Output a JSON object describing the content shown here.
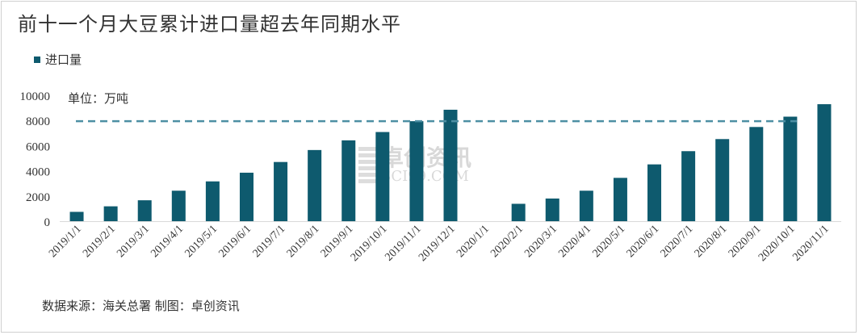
{
  "title": "前十一个月大豆累计进口量超去年同期水平",
  "unit_label": "单位：万吨",
  "source_label": "数据来源：海关总署    制图：卓创资讯",
  "watermark": {
    "cn": "卓创资讯",
    "en": "SCI99.COM"
  },
  "colors": {
    "bar": "#0e5a6e",
    "reference_line": "#4d8fa3",
    "text": "#333333"
  },
  "chart_data": {
    "type": "bar",
    "categories": [
      "2019/1/1",
      "2019/2/1",
      "2019/3/1",
      "2019/4/1",
      "2019/5/1",
      "2019/6/1",
      "2019/7/1",
      "2019/8/1",
      "2019/9/1",
      "2019/10/1",
      "2019/11/1",
      "2019/12/1",
      "2020/1/1",
      "2020/2/1",
      "2020/3/1",
      "2020/4/1",
      "2020/5/1",
      "2020/6/1",
      "2020/7/1",
      "2020/8/1",
      "2020/9/1",
      "2020/10/1",
      "2020/11/1"
    ],
    "series": [
      {
        "name": "进口量",
        "values": [
          740,
          1180,
          1660,
          2420,
          3160,
          3850,
          4700,
          5650,
          6420,
          7080,
          7940,
          8850,
          null,
          1380,
          1800,
          2420,
          3440,
          4510,
          5560,
          6520,
          7480,
          8300,
          9290
        ]
      }
    ],
    "reference_line": {
      "y": 7940,
      "style": "dashed"
    },
    "ylim": [
      0,
      10000
    ],
    "yticks": [
      0,
      2000,
      4000,
      6000,
      8000,
      10000
    ],
    "legend_position": "top-left",
    "grid": false
  }
}
